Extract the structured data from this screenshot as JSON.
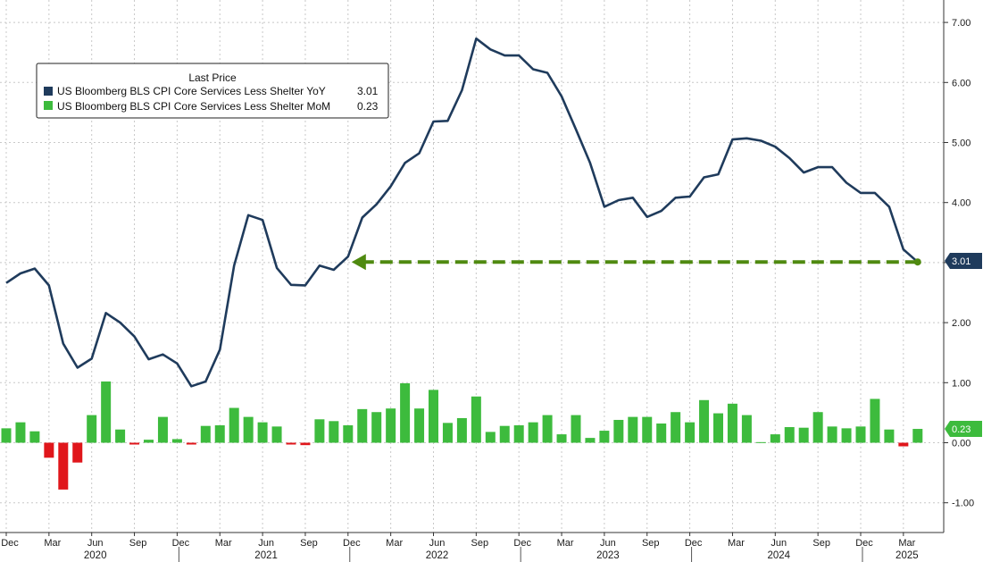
{
  "colors": {
    "yoy_line": "#1f3b5c",
    "mom_positive": "#3dbb3d",
    "mom_negative": "#e0161b",
    "arrow": "#4f8a10",
    "grid": "#c8c8c8",
    "yoy_tag_bg": "#1f3b5c",
    "mom_tag_bg": "#3dbb3d"
  },
  "legend": {
    "title": "Last Price",
    "items": [
      {
        "label": "US Bloomberg BLS CPI Core Services Less Shelter YoY",
        "value": "3.01",
        "color": "#1f3b5c"
      },
      {
        "label": "US Bloomberg BLS CPI Core Services Less Shelter MoM",
        "value": "0.23",
        "color": "#3dbb3d"
      }
    ]
  },
  "last_value_tags": {
    "yoy": "3.01",
    "mom": "0.23"
  },
  "chart_data": {
    "type": "line",
    "y_ticks": [
      "7.00",
      "6.00",
      "5.00",
      "4.00",
      "3.00",
      "2.00",
      "1.00",
      "0.00",
      "-1.00"
    ],
    "y_tick_values": [
      7,
      6,
      5,
      4,
      3,
      2,
      1,
      0,
      -1
    ],
    "ylim": [
      -1.5,
      7.35
    ],
    "x_tick_labels": [
      "Dec",
      "Mar",
      "Jun",
      "Sep",
      "Dec",
      "Mar",
      "Jun",
      "Sep",
      "Dec",
      "Mar",
      "Jun",
      "Sep",
      "Dec",
      "Mar",
      "Jun",
      "Sep",
      "Dec",
      "Mar",
      "Jun",
      "Sep",
      "Dec",
      "Mar"
    ],
    "x_tick_months": [
      "2019-12",
      "2020-03",
      "2020-06",
      "2020-09",
      "2020-12",
      "2021-03",
      "2021-06",
      "2021-09",
      "2021-12",
      "2022-03",
      "2022-06",
      "2022-09",
      "2022-12",
      "2023-03",
      "2023-06",
      "2023-09",
      "2023-12",
      "2024-03",
      "2024-06",
      "2024-09",
      "2024-12",
      "2025-03"
    ],
    "years": [
      "2020",
      "2021",
      "2022",
      "2023",
      "2024",
      "2025"
    ],
    "year_months": [
      "2020-06",
      "2021-06",
      "2022-06",
      "2023-06",
      "2024-06",
      "2025-03"
    ],
    "months": [
      "2019-12",
      "2020-01",
      "2020-02",
      "2020-03",
      "2020-04",
      "2020-05",
      "2020-06",
      "2020-07",
      "2020-08",
      "2020-09",
      "2020-10",
      "2020-11",
      "2020-12",
      "2021-01",
      "2021-02",
      "2021-03",
      "2021-04",
      "2021-05",
      "2021-06",
      "2021-07",
      "2021-08",
      "2021-09",
      "2021-10",
      "2021-11",
      "2021-12",
      "2022-01",
      "2022-02",
      "2022-03",
      "2022-04",
      "2022-05",
      "2022-06",
      "2022-07",
      "2022-08",
      "2022-09",
      "2022-10",
      "2022-11",
      "2022-12",
      "2023-01",
      "2023-02",
      "2023-03",
      "2023-04",
      "2023-05",
      "2023-06",
      "2023-07",
      "2023-08",
      "2023-09",
      "2023-10",
      "2023-11",
      "2023-12",
      "2024-01",
      "2024-02",
      "2024-03",
      "2024-04",
      "2024-05",
      "2024-06",
      "2024-07",
      "2024-08",
      "2024-09",
      "2024-10",
      "2024-11",
      "2024-12",
      "2025-01",
      "2025-02",
      "2025-03",
      "2025-04"
    ],
    "series": [
      {
        "name": "US Bloomberg BLS CPI Core Services Less Shelter YoY",
        "kind": "line",
        "values": [
          2.66,
          2.82,
          2.9,
          2.62,
          1.65,
          1.25,
          1.4,
          2.16,
          2.0,
          1.77,
          1.39,
          1.47,
          1.32,
          0.94,
          1.02,
          1.55,
          2.95,
          3.79,
          3.71,
          2.91,
          2.63,
          2.62,
          2.95,
          2.88,
          3.1,
          3.75,
          3.97,
          4.27,
          4.66,
          4.82,
          5.35,
          5.36,
          5.87,
          6.73,
          6.55,
          6.45,
          6.45,
          6.22,
          6.16,
          5.77,
          5.22,
          4.66,
          3.93,
          4.04,
          4.08,
          3.76,
          3.86,
          4.08,
          4.1,
          4.42,
          4.47,
          5.05,
          5.07,
          5.03,
          4.93,
          4.74,
          4.5,
          4.59,
          4.59,
          4.33,
          4.16,
          4.16,
          3.93,
          3.22,
          3.01
        ]
      },
      {
        "name": "US Bloomberg BLS CPI Core Services Less Shelter MoM",
        "kind": "bar",
        "values": [
          0.24,
          0.34,
          0.19,
          -0.25,
          -0.78,
          -0.33,
          0.46,
          1.02,
          0.22,
          -0.03,
          0.05,
          0.43,
          0.06,
          -0.03,
          0.28,
          0.29,
          0.58,
          0.43,
          0.34,
          0.27,
          -0.03,
          -0.04,
          0.39,
          0.36,
          0.29,
          0.56,
          0.51,
          0.57,
          0.99,
          0.57,
          0.88,
          0.33,
          0.41,
          0.77,
          0.18,
          0.28,
          0.29,
          0.34,
          0.46,
          0.14,
          0.46,
          0.08,
          0.2,
          0.38,
          0.43,
          0.43,
          0.32,
          0.51,
          0.34,
          0.71,
          0.49,
          0.65,
          0.46,
          0.01,
          0.14,
          0.26,
          0.25,
          0.51,
          0.27,
          0.24,
          0.27,
          0.73,
          0.22,
          -0.06,
          0.23
        ]
      }
    ],
    "annotation": {
      "type": "dashed-arrow",
      "from_month": "2025-04",
      "to_month": "2021-12",
      "value": 3.01
    }
  }
}
